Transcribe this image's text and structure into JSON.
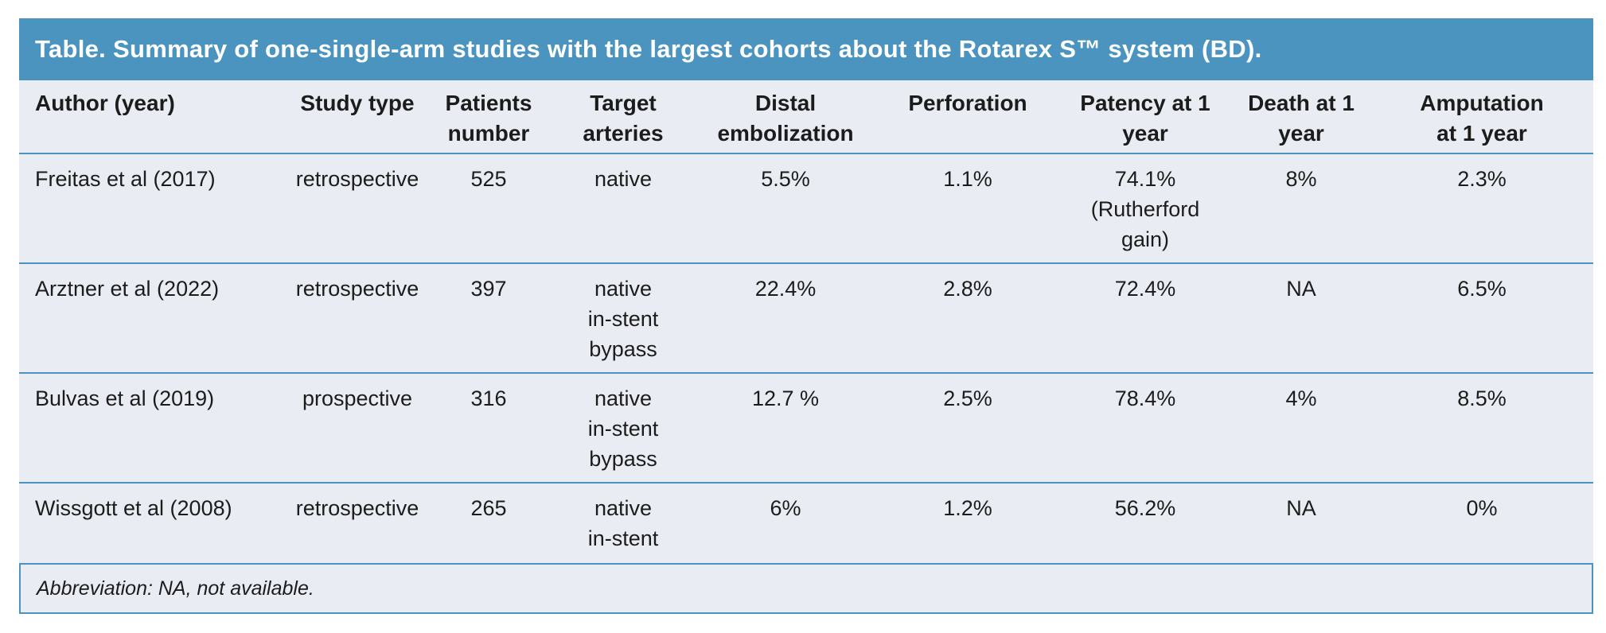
{
  "title": "Table. Summary of one-single-arm studies with the largest cohorts about the Rotarex S™ system (BD).",
  "columns": [
    {
      "line1": "Author (year)",
      "line2": ""
    },
    {
      "line1": "Study type",
      "line2": ""
    },
    {
      "line1": "Patients",
      "line2": "number"
    },
    {
      "line1": "Target",
      "line2": "arteries"
    },
    {
      "line1": "Distal",
      "line2": "embolization"
    },
    {
      "line1": "Perforation",
      "line2": ""
    },
    {
      "line1": "Patency at 1",
      "line2": "year"
    },
    {
      "line1": "Death at 1",
      "line2": "year"
    },
    {
      "line1": "Amputation",
      "line2": "at 1 year"
    }
  ],
  "rows": [
    {
      "author": "Freitas et al (2017)",
      "study_type": "retrospective",
      "patients": "525",
      "arteries": [
        "native",
        "",
        ""
      ],
      "embolization": "5.5%",
      "perforation": "1.1%",
      "patency": [
        "74.1%",
        "(Rutherford",
        "gain)"
      ],
      "death": "8%",
      "amputation": "2.3%"
    },
    {
      "author": "Arztner et al (2022)",
      "study_type": "retrospective",
      "patients": "397",
      "arteries": [
        "native",
        "in-stent",
        "bypass"
      ],
      "embolization": "22.4%",
      "perforation": "2.8%",
      "patency": [
        "72.4%",
        "",
        ""
      ],
      "death": "NA",
      "amputation": "6.5%"
    },
    {
      "author": "Bulvas et al (2019)",
      "study_type": "prospective",
      "patients": "316",
      "arteries": [
        "native",
        "in-stent",
        "bypass"
      ],
      "embolization": "12.7 %",
      "perforation": "2.5%",
      "patency": [
        "78.4%",
        "",
        ""
      ],
      "death": "4%",
      "amputation": "8.5%"
    },
    {
      "author": "Wissgott et al (2008)",
      "study_type": "retrospective",
      "patients": "265",
      "arteries": [
        "native",
        "in-stent",
        ""
      ],
      "embolization": "6%",
      "perforation": "1.2%",
      "patency": [
        "56.2%",
        "",
        ""
      ],
      "death": "NA",
      "amputation": "0%"
    }
  ],
  "footnote": "Abbreviation: NA, not available."
}
